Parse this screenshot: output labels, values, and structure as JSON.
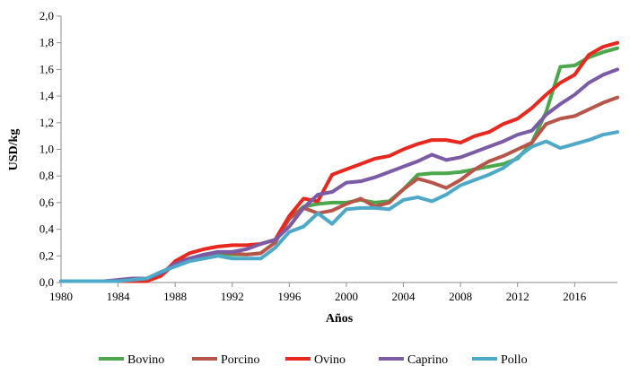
{
  "chart_data": {
    "type": "line",
    "title": "",
    "xlabel": "Años",
    "ylabel": "USD/kg",
    "xlim": [
      1980,
      2019
    ],
    "ylim": [
      0,
      2
    ],
    "xticks": [
      1980,
      1984,
      1988,
      1992,
      1996,
      2000,
      2004,
      2008,
      2012,
      2016
    ],
    "yticks": [
      0,
      0.2,
      0.4,
      0.6,
      0.8,
      1.0,
      1.2,
      1.4,
      1.6,
      1.8,
      2.0
    ],
    "ytick_labels": [
      "0,0",
      "0,2",
      "0,4",
      "0,6",
      "0,8",
      "1,0",
      "1,2",
      "1,4",
      "1,6",
      "1,8",
      "2,0"
    ],
    "grid": false,
    "legend_position": "bottom",
    "x": [
      1980,
      1981,
      1982,
      1983,
      1984,
      1985,
      1986,
      1987,
      1988,
      1989,
      1990,
      1991,
      1992,
      1993,
      1994,
      1995,
      1996,
      1997,
      1998,
      1999,
      2000,
      2001,
      2002,
      2003,
      2004,
      2005,
      2006,
      2007,
      2008,
      2009,
      2010,
      2011,
      2012,
      2013,
      2014,
      2015,
      2016,
      2017,
      2018,
      2019
    ],
    "series": [
      {
        "name": "Bovino",
        "color": "#4aa84a",
        "values": [
          0.01,
          0.01,
          0.01,
          0.01,
          0.01,
          0.02,
          0.02,
          0.05,
          0.15,
          0.18,
          0.2,
          0.22,
          0.21,
          0.21,
          0.22,
          0.3,
          0.48,
          0.57,
          0.59,
          0.6,
          0.6,
          0.62,
          0.6,
          0.61,
          0.7,
          0.81,
          0.82,
          0.82,
          0.83,
          0.85,
          0.87,
          0.89,
          0.93,
          1.05,
          1.28,
          1.62,
          1.63,
          1.69,
          1.73,
          1.76
        ]
      },
      {
        "name": "Porcino",
        "color": "#b8554a",
        "values": [
          0.01,
          0.01,
          0.01,
          0.01,
          0.01,
          0.02,
          0.02,
          0.05,
          0.14,
          0.18,
          0.2,
          0.23,
          0.22,
          0.21,
          0.22,
          0.3,
          0.48,
          0.56,
          0.52,
          0.54,
          0.59,
          0.63,
          0.57,
          0.6,
          0.7,
          0.78,
          0.75,
          0.71,
          0.77,
          0.85,
          0.91,
          0.95,
          1.0,
          1.05,
          1.19,
          1.23,
          1.25,
          1.3,
          1.35,
          1.39
        ]
      },
      {
        "name": "Ovino",
        "color": "#e8281e",
        "values": [
          0.01,
          0.01,
          0.01,
          0.01,
          0.01,
          0.01,
          0.01,
          0.05,
          0.16,
          0.22,
          0.25,
          0.27,
          0.28,
          0.28,
          0.29,
          0.32,
          0.5,
          0.63,
          0.61,
          0.81,
          0.85,
          0.89,
          0.93,
          0.95,
          1.0,
          1.04,
          1.07,
          1.07,
          1.05,
          1.1,
          1.13,
          1.19,
          1.23,
          1.31,
          1.41,
          1.5,
          1.56,
          1.71,
          1.77,
          1.8
        ]
      },
      {
        "name": "Caprino",
        "color": "#7b5aa6",
        "values": [
          0.01,
          0.01,
          0.01,
          0.01,
          0.02,
          0.03,
          0.03,
          0.07,
          0.14,
          0.18,
          0.21,
          0.23,
          0.23,
          0.25,
          0.29,
          0.32,
          0.42,
          0.56,
          0.66,
          0.68,
          0.75,
          0.76,
          0.79,
          0.83,
          0.87,
          0.91,
          0.96,
          0.92,
          0.94,
          0.98,
          1.02,
          1.06,
          1.11,
          1.14,
          1.26,
          1.34,
          1.41,
          1.5,
          1.56,
          1.6
        ]
      },
      {
        "name": "Pollo",
        "color": "#4ea8c8",
        "values": [
          0.01,
          0.01,
          0.01,
          0.01,
          0.01,
          0.02,
          0.03,
          0.08,
          0.12,
          0.16,
          0.18,
          0.2,
          0.18,
          0.18,
          0.18,
          0.26,
          0.38,
          0.42,
          0.52,
          0.44,
          0.55,
          0.56,
          0.56,
          0.55,
          0.62,
          0.64,
          0.61,
          0.66,
          0.73,
          0.77,
          0.81,
          0.86,
          0.94,
          1.02,
          1.06,
          1.01,
          1.04,
          1.07,
          1.11,
          1.13
        ]
      }
    ]
  }
}
